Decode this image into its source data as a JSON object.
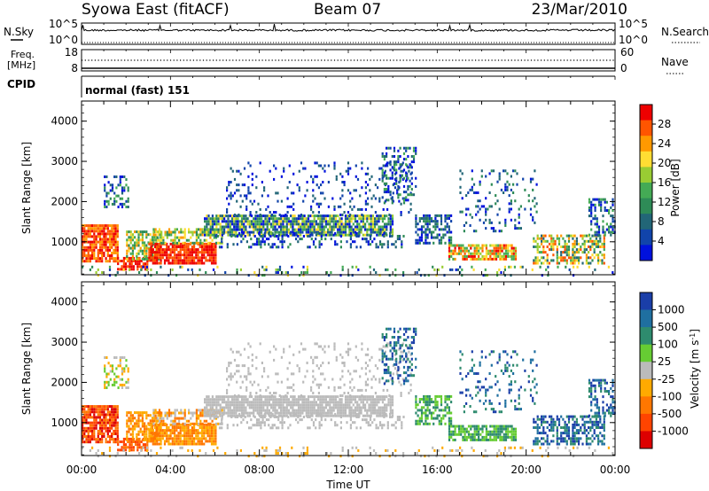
{
  "header": {
    "station": "Syowa East (fitACF)",
    "beam": "Beam 07",
    "date": "23/Mar/2010"
  },
  "top_panels": {
    "nsky": {
      "label": "N.Sky",
      "left_ticks": [
        "10^5",
        "10^0"
      ],
      "right_ticks": [
        "10^5",
        "10^0"
      ],
      "right_label": "N.Search"
    },
    "freq": {
      "label_line1": "Freq.",
      "label_line2": "[MHz]",
      "left_ticks": [
        "18",
        "8"
      ],
      "right_ticks": [
        "60",
        "0"
      ],
      "right_label": "Nave"
    },
    "cpid": {
      "label": "CPID",
      "value": "normal (fast) 151"
    }
  },
  "chart_data": [
    {
      "type": "heatmap",
      "quantity": "power",
      "ylabel": "Slant Range [km]",
      "xlabel": "Time UT",
      "ylim": [
        180,
        4500
      ],
      "yticks": [
        1000,
        2000,
        3000,
        4000
      ],
      "xticks": [
        "00:00",
        "04:00",
        "08:00",
        "12:00",
        "16:00",
        "20:00",
        "00:00"
      ],
      "colorbar": {
        "label": "Power [dB]",
        "ticks": [
          "28",
          "24",
          "20",
          "16",
          "12",
          "8",
          "4"
        ],
        "colors": [
          "#ee0000",
          "#ff5500",
          "#ff9900",
          "#ffdd33",
          "#99cc33",
          "#44aa55",
          "#2e8b57",
          "#226677",
          "#1144aa",
          "#0011dd"
        ]
      }
    },
    {
      "type": "heatmap",
      "quantity": "velocity",
      "ylabel": "Slant Range [km]",
      "xlabel": "Time UT",
      "ylim": [
        180,
        4500
      ],
      "yticks": [
        1000,
        2000,
        3000,
        4000
      ],
      "xticks": [
        "00:00",
        "04:00",
        "08:00",
        "12:00",
        "16:00",
        "20:00",
        "00:00"
      ],
      "colorbar": {
        "label": "Velocity [m s-1]",
        "ticks": [
          "1000",
          "500",
          "100",
          "25",
          "-25",
          "-100",
          "-500",
          "-1000"
        ],
        "colors": [
          "#1a3ea8",
          "#1f6fa0",
          "#2e8b6e",
          "#66cc33",
          "#bbbbbb",
          "#ffaa00",
          "#ff7700",
          "#ff4400",
          "#dd0000"
        ]
      }
    }
  ]
}
